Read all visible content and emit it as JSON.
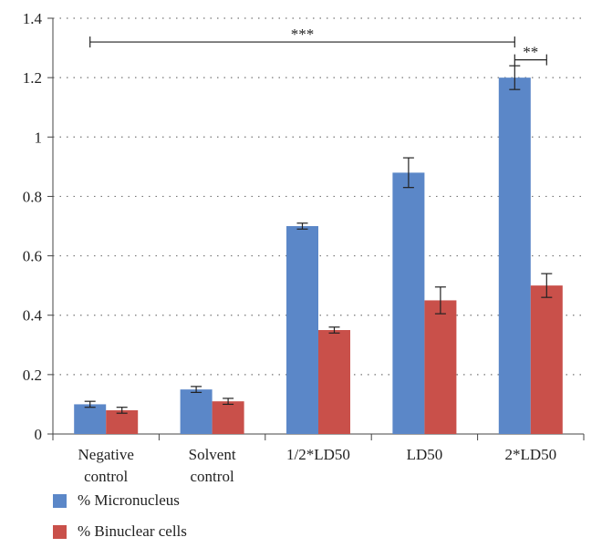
{
  "chart_data": {
    "type": "bar",
    "categories": [
      [
        "Negative",
        "control"
      ],
      [
        "Solvent",
        "control"
      ],
      [
        "1/2*LD50"
      ],
      [
        "LD50"
      ],
      [
        "2*LD50"
      ]
    ],
    "series": [
      {
        "name": "% Micronucleus",
        "color": "#5b87c8",
        "values": [
          0.1,
          0.15,
          0.7,
          0.88,
          1.2
        ],
        "errors": [
          0.01,
          0.01,
          0.01,
          0.05,
          0.04
        ]
      },
      {
        "name": "% Binuclear cells",
        "color": "#c9504a",
        "values": [
          0.08,
          0.11,
          0.35,
          0.45,
          0.5
        ],
        "errors": [
          0.01,
          0.01,
          0.01,
          0.045,
          0.04
        ]
      }
    ],
    "yticks": [
      "0",
      "0.2",
      "0.4",
      "0.6",
      "0.8",
      "1",
      "1.2",
      "1.4"
    ],
    "ylim": [
      0,
      1.4
    ],
    "grid": true,
    "legend_position": "bottom-left",
    "annotations": [
      {
        "label": "***",
        "from_category": 0,
        "to_category": 4,
        "series": 0,
        "level": 1.32
      },
      {
        "label": "**",
        "from_category": 4,
        "to_category": 4,
        "series": 0,
        "to_series": 1,
        "level": 1.26
      }
    ]
  }
}
